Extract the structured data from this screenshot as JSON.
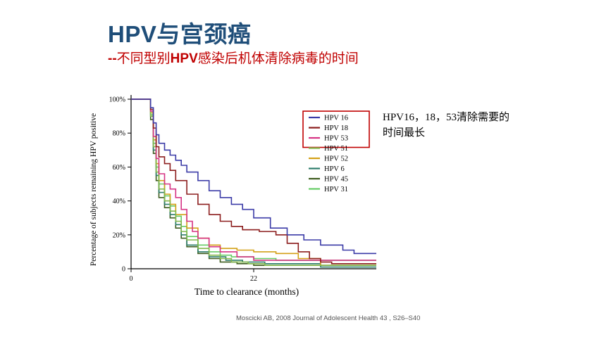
{
  "slide": {
    "title": "HPV与宫颈癌",
    "subtitle_dash": "--",
    "subtitle_pre": "不同型别",
    "subtitle_hpv": "HPV",
    "subtitle_post": "感染后机体清除病毒的时间",
    "note_latin": "HPV16，18，53",
    "note_text": "清除需要的时间最长",
    "citation": "Moscicki AB, 2008 Journal of Adolescent Health 43 , S26–S40"
  },
  "colors": {
    "title": "#1f4e79",
    "subtitle": "#c00000",
    "legend_highlight_box": "#c00000"
  },
  "chart_data": {
    "type": "line",
    "step": true,
    "title": "",
    "xlabel": "Time to clearance (months)",
    "ylabel": "Percentage of subjects remaining HPV positive",
    "xlim": [
      0,
      44
    ],
    "ylim": [
      0,
      100
    ],
    "x_ticks": [
      0,
      22
    ],
    "x_tick_labels": [
      "0",
      "22"
    ],
    "y_ticks": [
      0,
      20,
      40,
      60,
      80,
      100
    ],
    "y_tick_labels": [
      "0",
      "20%",
      "40%",
      "60%",
      "80%",
      "100%"
    ],
    "legend_position": "top-right",
    "highlighted_series": [
      "HPV 16",
      "HPV 18",
      "HPV 53"
    ],
    "series": [
      {
        "name": "HPV 16",
        "color": "#3b3ba7",
        "x": [
          0,
          3,
          3.5,
          4,
          4.5,
          5,
          6,
          7,
          8,
          9,
          10,
          12,
          14,
          16,
          18,
          20,
          22,
          25,
          28,
          31,
          34,
          38,
          40,
          44
        ],
        "y": [
          100,
          100,
          95,
          86,
          79,
          74,
          70,
          67,
          64,
          61,
          57,
          52,
          46,
          42,
          38,
          35,
          30,
          24,
          20,
          17,
          14,
          11,
          9,
          9
        ]
      },
      {
        "name": "HPV 18",
        "color": "#8c1d1d",
        "x": [
          0,
          3,
          3.5,
          4,
          4.5,
          5,
          6,
          7,
          8,
          10,
          12,
          14,
          16,
          18,
          20,
          23,
          26,
          28,
          30,
          32,
          34,
          36,
          38,
          44
        ],
        "y": [
          100,
          100,
          94,
          83,
          72,
          66,
          62,
          58,
          52,
          44,
          38,
          32,
          28,
          25,
          23,
          22,
          20,
          15,
          10,
          6,
          4,
          3,
          3,
          3
        ]
      },
      {
        "name": "HPV 53",
        "color": "#d63384",
        "x": [
          0,
          3,
          3.5,
          4,
          4.5,
          5,
          6,
          7,
          8,
          9,
          10,
          11,
          12,
          14,
          16,
          19,
          22,
          26,
          30,
          34,
          44
        ],
        "y": [
          100,
          100,
          93,
          78,
          65,
          56,
          50,
          47,
          42,
          35,
          28,
          22,
          18,
          13,
          10,
          7,
          5,
          5,
          5,
          5,
          5
        ]
      },
      {
        "name": "HPV 51",
        "color": "#82b74b",
        "x": [
          0,
          3,
          3.5,
          4,
          4.5,
          5,
          6,
          7,
          8,
          9,
          10,
          12,
          14,
          16,
          18,
          21,
          24,
          44
        ],
        "y": [
          100,
          100,
          90,
          72,
          57,
          47,
          40,
          34,
          28,
          22,
          17,
          12,
          8,
          6,
          4,
          3,
          2,
          2
        ]
      },
      {
        "name": "HPV 52",
        "color": "#d4a017",
        "x": [
          0,
          3,
          3.5,
          4,
          4.5,
          5,
          6,
          7,
          8,
          10,
          12,
          14,
          16,
          19,
          22,
          26,
          30,
          34,
          44
        ],
        "y": [
          100,
          100,
          92,
          76,
          62,
          52,
          44,
          38,
          32,
          24,
          18,
          14,
          12,
          11,
          10,
          9,
          6,
          2,
          2
        ]
      },
      {
        "name": "HPV 6",
        "color": "#2e7d6b",
        "x": [
          0,
          3,
          3.5,
          4,
          4.5,
          5,
          6,
          7,
          8,
          9,
          10,
          12,
          14,
          17,
          20,
          24,
          28,
          32,
          34,
          44
        ],
        "y": [
          100,
          100,
          90,
          70,
          55,
          45,
          38,
          32,
          26,
          20,
          14,
          10,
          7,
          5,
          4,
          3,
          3,
          3,
          1,
          1
        ]
      },
      {
        "name": "HPV 45",
        "color": "#3d5c1f",
        "x": [
          0,
          3,
          3.5,
          4,
          4.5,
          5,
          6,
          7,
          8,
          9,
          10,
          12,
          14,
          16,
          19,
          22,
          44
        ],
        "y": [
          100,
          100,
          88,
          68,
          52,
          42,
          36,
          30,
          24,
          18,
          13,
          9,
          6,
          4,
          3,
          2,
          2
        ]
      },
      {
        "name": "HPV 31",
        "color": "#66cc66",
        "x": [
          0,
          3,
          3.5,
          4,
          4.5,
          5,
          6,
          7,
          8,
          9,
          10,
          12,
          14,
          16,
          18,
          22,
          26,
          44
        ],
        "y": [
          100,
          100,
          91,
          74,
          60,
          50,
          43,
          37,
          31,
          25,
          19,
          14,
          10,
          8,
          7,
          6,
          5,
          5
        ]
      }
    ]
  }
}
